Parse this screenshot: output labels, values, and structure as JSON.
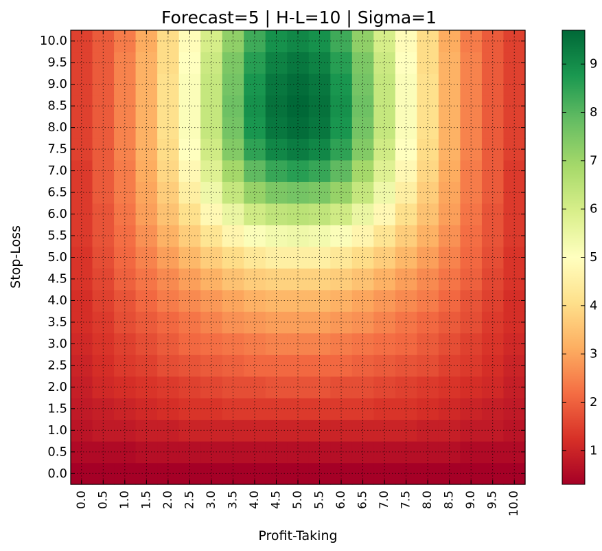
{
  "chart_data": {
    "type": "heatmap",
    "title": "Forecast=5 | H-L=10 | Sigma=1",
    "xlabel": "Profit-Taking",
    "ylabel": "Stop-Loss",
    "x_ticks": [
      "0.0",
      "0.5",
      "1.0",
      "1.5",
      "2.0",
      "2.5",
      "3.0",
      "3.5",
      "4.0",
      "4.5",
      "5.0",
      "5.5",
      "6.0",
      "6.5",
      "7.0",
      "7.5",
      "8.0",
      "8.5",
      "9.0",
      "9.5",
      "10.0"
    ],
    "y_ticks": [
      "0.0",
      "0.5",
      "1.0",
      "1.5",
      "2.0",
      "2.5",
      "3.0",
      "3.5",
      "4.0",
      "4.5",
      "5.0",
      "5.5",
      "6.0",
      "6.5",
      "7.0",
      "7.5",
      "8.0",
      "8.5",
      "9.0",
      "9.5",
      "10.0"
    ],
    "x": [
      0.0,
      0.5,
      1.0,
      1.5,
      2.0,
      2.5,
      3.0,
      3.5,
      4.0,
      4.5,
      5.0,
      5.5,
      6.0,
      6.5,
      7.0,
      7.5,
      8.0,
      8.5,
      9.0,
      9.5,
      10.0
    ],
    "y": [
      0.0,
      0.5,
      1.0,
      1.5,
      2.0,
      2.5,
      3.0,
      3.5,
      4.0,
      4.5,
      5.0,
      5.5,
      6.0,
      6.5,
      7.0,
      7.5,
      8.0,
      8.5,
      9.0,
      9.5,
      10.0
    ],
    "values": [
      [
        0.3,
        0.3,
        0.3,
        0.3,
        0.3,
        0.3,
        0.3,
        0.3,
        0.3,
        0.3,
        0.3,
        0.3,
        0.3,
        0.3,
        0.3,
        0.3,
        0.3,
        0.3,
        0.3,
        0.3,
        0.3
      ],
      [
        0.5,
        0.5,
        0.5,
        0.6,
        0.6,
        0.6,
        0.6,
        0.6,
        0.6,
        0.6,
        0.6,
        0.6,
        0.6,
        0.6,
        0.6,
        0.6,
        0.6,
        0.6,
        0.5,
        0.5,
        0.5
      ],
      [
        0.7,
        0.8,
        0.8,
        0.9,
        0.9,
        1.0,
        1.0,
        1.0,
        1.0,
        1.0,
        1.0,
        1.0,
        1.0,
        1.0,
        1.0,
        1.0,
        0.9,
        0.9,
        0.8,
        0.8,
        0.7
      ],
      [
        0.8,
        0.9,
        1.0,
        1.1,
        1.2,
        1.3,
        1.3,
        1.4,
        1.4,
        1.4,
        1.4,
        1.4,
        1.4,
        1.4,
        1.3,
        1.3,
        1.2,
        1.1,
        1.0,
        0.9,
        0.8
      ],
      [
        0.9,
        1.1,
        1.2,
        1.3,
        1.4,
        1.5,
        1.6,
        1.7,
        1.7,
        1.8,
        1.8,
        1.8,
        1.7,
        1.7,
        1.6,
        1.5,
        1.4,
        1.3,
        1.2,
        1.1,
        0.9
      ],
      [
        1.0,
        1.2,
        1.4,
        1.5,
        1.7,
        1.8,
        1.9,
        2.0,
        2.1,
        2.1,
        2.1,
        2.1,
        2.1,
        2.0,
        1.9,
        1.8,
        1.7,
        1.5,
        1.4,
        1.2,
        1.0
      ],
      [
        1.1,
        1.3,
        1.5,
        1.7,
        1.9,
        2.1,
        2.2,
        2.3,
        2.4,
        2.5,
        2.5,
        2.5,
        2.4,
        2.3,
        2.2,
        2.1,
        1.9,
        1.7,
        1.5,
        1.3,
        1.1
      ],
      [
        1.2,
        1.4,
        1.7,
        1.9,
        2.1,
        2.3,
        2.5,
        2.7,
        2.8,
        2.9,
        2.9,
        2.9,
        2.8,
        2.7,
        2.5,
        2.3,
        2.1,
        1.9,
        1.7,
        1.4,
        1.2
      ],
      [
        1.2,
        1.5,
        1.8,
        2.1,
        2.4,
        2.6,
        2.8,
        3.0,
        3.2,
        3.3,
        3.3,
        3.3,
        3.2,
        3.0,
        2.8,
        2.6,
        2.4,
        2.1,
        1.8,
        1.5,
        1.2
      ],
      [
        1.3,
        1.6,
        2.0,
        2.3,
        2.6,
        2.9,
        3.2,
        3.5,
        3.7,
        3.8,
        3.8,
        3.8,
        3.7,
        3.5,
        3.2,
        2.9,
        2.6,
        2.3,
        2.0,
        1.6,
        1.3
      ],
      [
        1.3,
        1.7,
        2.1,
        2.5,
        2.9,
        3.3,
        3.7,
        4.0,
        4.3,
        4.5,
        4.5,
        4.5,
        4.3,
        4.0,
        3.7,
        3.3,
        2.9,
        2.5,
        2.1,
        1.7,
        1.3
      ],
      [
        1.4,
        1.8,
        2.2,
        2.7,
        3.2,
        3.7,
        4.2,
        4.7,
        5.1,
        5.3,
        5.4,
        5.3,
        5.1,
        4.7,
        4.2,
        3.7,
        3.2,
        2.7,
        2.2,
        1.8,
        1.4
      ],
      [
        1.4,
        1.8,
        2.3,
        2.9,
        3.5,
        4.1,
        4.8,
        5.5,
        6.1,
        6.4,
        6.5,
        6.4,
        6.1,
        5.5,
        4.8,
        4.1,
        3.5,
        2.9,
        2.3,
        1.8,
        1.4
      ],
      [
        1.4,
        1.9,
        2.4,
        3.0,
        3.7,
        4.5,
        5.4,
        6.3,
        7.1,
        7.5,
        7.6,
        7.5,
        7.1,
        6.3,
        5.4,
        4.5,
        3.7,
        3.0,
        2.4,
        1.9,
        1.4
      ],
      [
        1.4,
        1.9,
        2.4,
        3.1,
        3.9,
        4.8,
        5.8,
        6.9,
        7.9,
        8.4,
        8.6,
        8.4,
        7.9,
        6.9,
        5.8,
        4.8,
        3.9,
        3.1,
        2.4,
        1.9,
        1.4
      ],
      [
        1.5,
        1.9,
        2.5,
        3.2,
        4.0,
        5.0,
        6.1,
        7.4,
        8.5,
        9.1,
        9.3,
        9.1,
        8.5,
        7.4,
        6.1,
        5.0,
        4.0,
        3.2,
        2.5,
        1.9,
        1.5
      ],
      [
        1.5,
        1.9,
        2.5,
        3.2,
        4.1,
        5.1,
        6.3,
        7.6,
        8.8,
        9.4,
        9.6,
        9.4,
        8.8,
        7.6,
        6.3,
        5.1,
        4.1,
        3.2,
        2.5,
        1.9,
        1.5
      ],
      [
        1.5,
        1.9,
        2.5,
        3.2,
        4.1,
        5.1,
        6.3,
        7.7,
        8.9,
        9.5,
        9.7,
        9.5,
        8.9,
        7.7,
        6.3,
        5.1,
        4.1,
        3.2,
        2.5,
        1.9,
        1.5
      ],
      [
        1.5,
        1.9,
        2.5,
        3.2,
        4.1,
        5.1,
        6.3,
        7.6,
        8.8,
        9.4,
        9.6,
        9.4,
        8.8,
        7.6,
        6.3,
        5.1,
        4.1,
        3.2,
        2.5,
        1.9,
        1.5
      ],
      [
        1.5,
        1.9,
        2.5,
        3.2,
        4.0,
        5.0,
        6.2,
        7.5,
        8.6,
        9.2,
        9.4,
        9.2,
        8.6,
        7.5,
        6.2,
        5.0,
        4.0,
        3.2,
        2.5,
        1.9,
        1.5
      ],
      [
        1.5,
        1.9,
        2.4,
        3.1,
        4.0,
        4.9,
        6.0,
        7.2,
        8.3,
        8.9,
        9.1,
        8.9,
        8.3,
        7.2,
        6.0,
        4.9,
        4.0,
        3.1,
        2.4,
        1.9,
        1.5
      ]
    ],
    "colormap": "RdYlGn",
    "colormap_colors": [
      "#a50026",
      "#d73027",
      "#f46d43",
      "#fdae61",
      "#fee08b",
      "#ffffbf",
      "#d9ef8b",
      "#a6d96a",
      "#66bd63",
      "#1a9850",
      "#006837"
    ],
    "vmin": 0.3,
    "vmax": 9.7,
    "colorbar_ticks": [
      "1",
      "2",
      "3",
      "4",
      "5",
      "6",
      "7",
      "8",
      "9"
    ],
    "colorbar_values": [
      1,
      2,
      3,
      4,
      5,
      6,
      7,
      8,
      9
    ],
    "grid": true,
    "grid_style": "dotted"
  }
}
